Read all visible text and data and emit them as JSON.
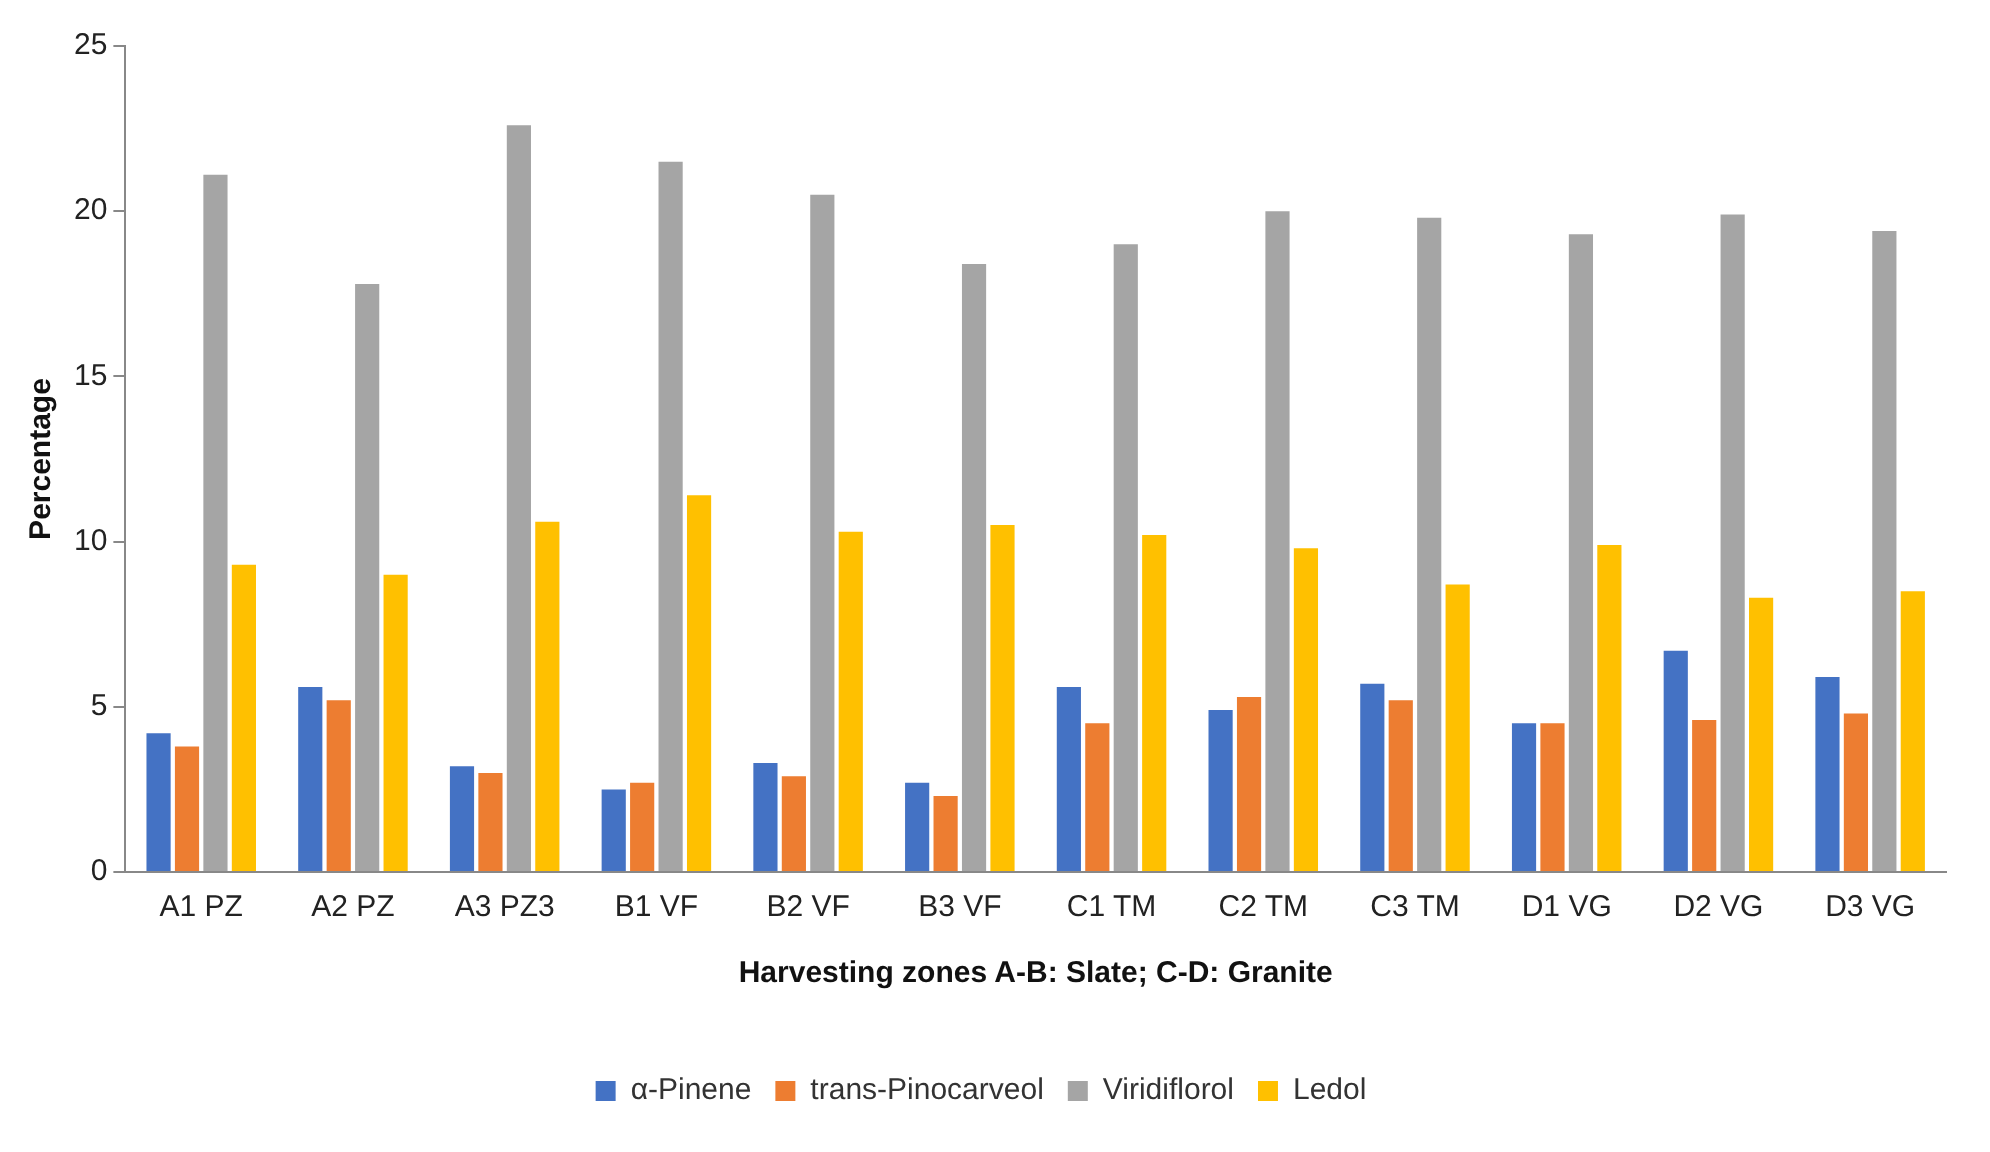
{
  "chart_data": {
    "type": "bar",
    "xlabel": "Harvesting zones A-B: Slate; C-D: Granite",
    "ylabel": "Percentage",
    "categories": [
      "A1 PZ",
      "A2 PZ",
      "A3 PZ3",
      "B1 VF",
      "B2 VF",
      "B3 VF",
      "C1 TM",
      "C2 TM",
      "C3 TM",
      "D1 VG",
      "D2 VG",
      "D3 VG"
    ],
    "series": [
      {
        "name": "α-Pinene",
        "color": "#4472c4",
        "values": [
          4.2,
          5.6,
          3.2,
          2.5,
          3.3,
          2.7,
          5.6,
          4.9,
          5.7,
          4.5,
          6.7,
          5.9
        ]
      },
      {
        "name": "trans-Pinocarveol",
        "color": "#ed7d31",
        "values": [
          3.8,
          5.2,
          3.0,
          2.7,
          2.9,
          2.3,
          4.5,
          5.3,
          5.2,
          4.5,
          4.6,
          4.8
        ]
      },
      {
        "name": "Viridiflorol",
        "color": "#a5a5a5",
        "values": [
          21.1,
          17.8,
          22.6,
          21.5,
          20.5,
          18.4,
          19.0,
          20.0,
          19.8,
          19.3,
          19.9,
          19.4
        ]
      },
      {
        "name": "Ledol",
        "color": "#ffc000",
        "values": [
          9.3,
          9.0,
          10.6,
          11.4,
          10.3,
          10.5,
          10.2,
          9.8,
          8.7,
          9.9,
          8.3,
          8.5
        ]
      }
    ],
    "ylim": [
      0,
      25
    ],
    "yticks": [
      0,
      5,
      10,
      15,
      20,
      25
    ],
    "grid": false,
    "legend": "bottom"
  }
}
